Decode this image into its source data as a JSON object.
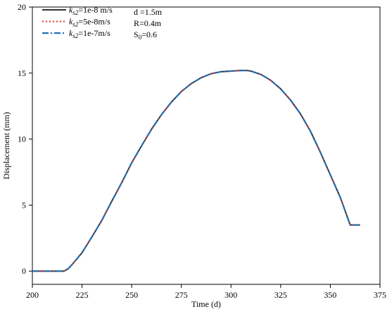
{
  "chart_data": {
    "type": "line",
    "xlabel": "Time (d)",
    "ylabel": "Displacement (mm)",
    "xlim": [
      200,
      375
    ],
    "ylim": [
      -1,
      20
    ],
    "x_ticks": [
      "200",
      "225",
      "250",
      "275",
      "300",
      "325",
      "350",
      "375"
    ],
    "y_ticks": [
      "0",
      "5",
      "10",
      "15",
      "20"
    ],
    "x": [
      200,
      205,
      210,
      215,
      216,
      218,
      220,
      225,
      230,
      235,
      240,
      245,
      250,
      255,
      260,
      265,
      270,
      275,
      280,
      285,
      290,
      295,
      300,
      305,
      308,
      310,
      315,
      320,
      325,
      330,
      335,
      340,
      345,
      350,
      355,
      360,
      365
    ],
    "series": [
      {
        "name_prefix": "k",
        "name_sub": "s2",
        "name_suffix": "=1e-8 m/s",
        "color": "#333333",
        "style": "solid",
        "values": [
          0,
          0,
          0,
          0,
          0,
          0.18,
          0.5,
          1.4,
          2.6,
          3.85,
          5.3,
          6.7,
          8.2,
          9.5,
          10.75,
          11.85,
          12.8,
          13.6,
          14.2,
          14.65,
          14.95,
          15.1,
          15.15,
          15.2,
          15.2,
          15.15,
          14.9,
          14.45,
          13.8,
          12.95,
          11.9,
          10.6,
          9.0,
          7.3,
          5.6,
          3.5,
          3.5
        ]
      },
      {
        "name_prefix": "k",
        "name_sub": "s2",
        "name_suffix": "=5e-8m/s",
        "color": "#e0302b",
        "style": "dotted",
        "values": [
          0,
          0,
          0,
          0,
          0,
          0.18,
          0.5,
          1.4,
          2.6,
          3.85,
          5.3,
          6.7,
          8.2,
          9.5,
          10.75,
          11.85,
          12.8,
          13.6,
          14.2,
          14.65,
          14.95,
          15.1,
          15.15,
          15.2,
          15.2,
          15.15,
          14.9,
          14.45,
          13.8,
          12.95,
          11.9,
          10.6,
          9.0,
          7.3,
          5.6,
          3.5,
          3.5
        ]
      },
      {
        "name_prefix": "k",
        "name_sub": "s2",
        "name_suffix": "=1e-7m/s",
        "color": "#1f6fb2",
        "style": "dashdot",
        "values": [
          0,
          0,
          0,
          0,
          0,
          0.18,
          0.5,
          1.4,
          2.6,
          3.85,
          5.3,
          6.7,
          8.2,
          9.5,
          10.75,
          11.85,
          12.8,
          13.6,
          14.2,
          14.65,
          14.95,
          15.1,
          15.15,
          15.2,
          15.2,
          15.15,
          14.9,
          14.45,
          13.8,
          12.95,
          11.9,
          10.6,
          9.0,
          7.3,
          5.6,
          3.5,
          3.5
        ]
      }
    ],
    "parameters": {
      "d": "d =1.5m",
      "R": "R=0.4m",
      "S_prefix": "S",
      "S_sub": "0",
      "S_suffix": "=0.6"
    },
    "legend_position": "top-left",
    "grid": false
  }
}
